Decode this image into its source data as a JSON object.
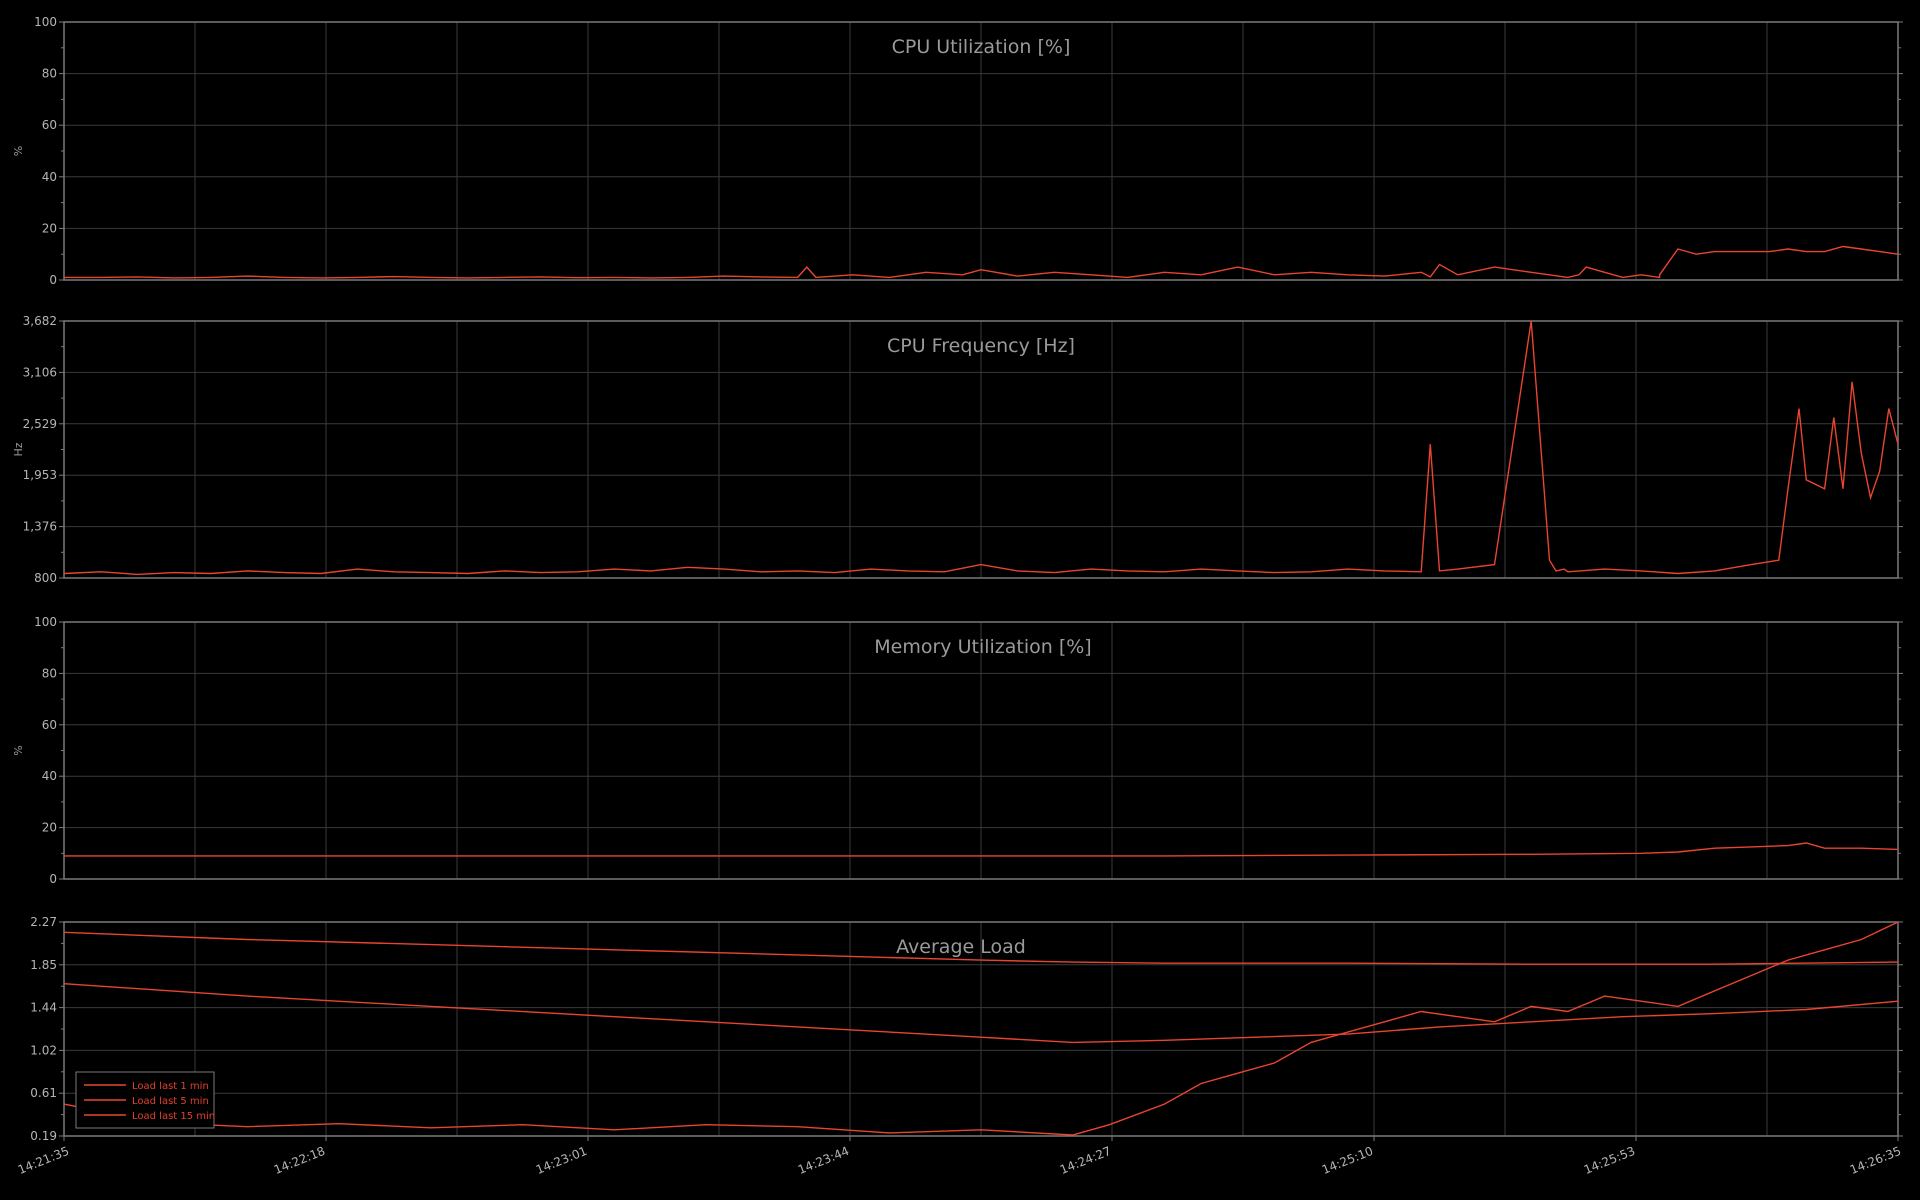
{
  "series_color": "#e8452f",
  "x_tick_labels": [
    "14:21:35",
    "14:22:18",
    "14:23:01",
    "14:23:44",
    "14:24:27",
    "14:25:10",
    "14:25:53",
    "14:26:35"
  ],
  "chart_data": [
    {
      "type": "line",
      "title": "CPU Utilization [%]",
      "ylabel": "%",
      "ylim": [
        0,
        100
      ],
      "y_ticks": [
        "0",
        "20",
        "40",
        "60",
        "80",
        "100"
      ],
      "grid": true,
      "series": [
        {
          "values_x_fraction": [
            0,
            0.02,
            0.04,
            0.06,
            0.08,
            0.1,
            0.12,
            0.14,
            0.16,
            0.18,
            0.2,
            0.22,
            0.24,
            0.26,
            0.28,
            0.3,
            0.32,
            0.34,
            0.36,
            0.38,
            0.4,
            0.405,
            0.41,
            0.43,
            0.45,
            0.47,
            0.49,
            0.5,
            0.52,
            0.54,
            0.56,
            0.58,
            0.6,
            0.62,
            0.64,
            0.66,
            0.68,
            0.7,
            0.72,
            0.74,
            0.745,
            0.75,
            0.76,
            0.78,
            0.8,
            0.82,
            0.826,
            0.83,
            0.84,
            0.85,
            0.86,
            0.87,
            0.87,
            0.88,
            0.89,
            0.9,
            0.905,
            0.91,
            0.93,
            0.94,
            0.95,
            0.96,
            0.97,
            0.98,
            0.99,
            1
          ],
          "values": [
            1,
            1,
            1.2,
            0.8,
            1,
            1.5,
            1,
            0.8,
            1,
            1.3,
            1,
            0.8,
            1,
            1.2,
            0.9,
            1,
            0.8,
            1,
            1.5,
            1.2,
            1,
            5,
            1,
            2,
            1,
            3,
            2,
            4,
            1.5,
            3,
            2,
            1,
            3,
            2,
            5,
            2,
            3,
            2,
            1.5,
            3,
            1.2,
            6,
            2,
            5,
            3,
            1,
            2,
            5,
            3,
            1,
            2,
            1,
            2,
            12,
            10,
            11,
            11,
            11,
            11,
            12,
            11,
            11,
            13,
            12,
            11,
            10
          ]
        }
      ]
    },
    {
      "type": "line",
      "title": "CPU Frequency [Hz]",
      "ylabel": "Hz",
      "ylim": [
        800,
        3682
      ],
      "y_ticks": [
        "800",
        "1,376",
        "1,953",
        "2,529",
        "3,106",
        "3,682"
      ],
      "grid": true,
      "series": [
        {
          "values_x_fraction": [
            0,
            0.02,
            0.04,
            0.06,
            0.08,
            0.1,
            0.12,
            0.14,
            0.16,
            0.18,
            0.2,
            0.22,
            0.24,
            0.26,
            0.28,
            0.3,
            0.32,
            0.34,
            0.36,
            0.38,
            0.4,
            0.42,
            0.44,
            0.46,
            0.48,
            0.5,
            0.52,
            0.54,
            0.56,
            0.58,
            0.6,
            0.62,
            0.64,
            0.66,
            0.68,
            0.7,
            0.72,
            0.74,
            0.745,
            0.75,
            0.76,
            0.78,
            0.8,
            0.81,
            0.8135,
            0.818,
            0.82,
            0.84,
            0.86,
            0.88,
            0.9,
            0.92,
            0.935,
            0.94,
            0.946,
            0.95,
            0.96,
            0.965,
            0.97,
            0.975,
            0.98,
            0.985,
            0.99,
            0.995,
            1
          ],
          "values": [
            850,
            870,
            840,
            860,
            850,
            880,
            860,
            850,
            900,
            870,
            860,
            850,
            880,
            860,
            870,
            900,
            880,
            920,
            900,
            870,
            880,
            860,
            900,
            880,
            870,
            950,
            880,
            860,
            900,
            880,
            870,
            900,
            880,
            860,
            870,
            900,
            880,
            870,
            2300,
            880,
            900,
            950,
            3682,
            1000,
            880,
            900,
            870,
            900,
            880,
            850,
            880,
            950,
            1000,
            1800,
            2700,
            1900,
            1800,
            2600,
            1800,
            3000,
            2200,
            1700,
            2000,
            2700,
            2300
          ]
        }
      ]
    },
    {
      "type": "line",
      "title": "Memory Utilization [%]",
      "ylabel": "%",
      "ylim": [
        0,
        100
      ],
      "y_ticks": [
        "0",
        "20",
        "40",
        "60",
        "80",
        "100"
      ],
      "grid": true,
      "series": [
        {
          "values_x_fraction": [
            0,
            0.2,
            0.4,
            0.6,
            0.7,
            0.8,
            0.86,
            0.88,
            0.9,
            0.92,
            0.94,
            0.95,
            0.96,
            0.98,
            1
          ],
          "values": [
            9,
            9,
            9,
            9,
            9.3,
            9.6,
            10,
            10.5,
            12,
            12.5,
            13,
            14,
            12,
            12,
            11.5
          ]
        }
      ]
    },
    {
      "type": "line",
      "title": "Average Load",
      "ylabel": "",
      "ylim": [
        0.19,
        2.27
      ],
      "y_ticks": [
        "0.19",
        "0.61",
        "1.02",
        "1.44",
        "1.85",
        "2.27"
      ],
      "grid": true,
      "legend": "bottom-left",
      "series": [
        {
          "name": "Load last 1 min",
          "values_x_fraction": [
            0,
            0.05,
            0.1,
            0.15,
            0.2,
            0.25,
            0.3,
            0.35,
            0.4,
            0.45,
            0.5,
            0.55,
            0.57,
            0.6,
            0.62,
            0.64,
            0.66,
            0.68,
            0.7,
            0.72,
            0.74,
            0.76,
            0.78,
            0.8,
            0.82,
            0.84,
            0.86,
            0.88,
            0.9,
            0.92,
            0.94,
            0.96,
            0.98,
            1
          ],
          "values": [
            0.5,
            0.32,
            0.28,
            0.31,
            0.27,
            0.3,
            0.25,
            0.3,
            0.28,
            0.22,
            0.25,
            0.2,
            0.3,
            0.5,
            0.7,
            0.8,
            0.9,
            1.1,
            1.2,
            1.3,
            1.4,
            1.35,
            1.3,
            1.45,
            1.4,
            1.55,
            1.5,
            1.45,
            1.6,
            1.75,
            1.9,
            2.0,
            2.1,
            2.27
          ]
        },
        {
          "name": "Load last 5 min",
          "values_x_fraction": [
            0,
            0.1,
            0.2,
            0.3,
            0.4,
            0.5,
            0.55,
            0.6,
            0.65,
            0.7,
            0.75,
            0.8,
            0.85,
            0.9,
            0.95,
            1
          ],
          "values": [
            1.67,
            1.55,
            1.45,
            1.35,
            1.25,
            1.15,
            1.1,
            1.12,
            1.15,
            1.18,
            1.25,
            1.3,
            1.35,
            1.38,
            1.42,
            1.5
          ]
        },
        {
          "name": "Load last 15 min",
          "values_x_fraction": [
            0,
            0.1,
            0.2,
            0.3,
            0.4,
            0.5,
            0.55,
            0.6,
            0.7,
            0.8,
            0.9,
            1
          ],
          "values": [
            2.17,
            2.1,
            2.05,
            2.0,
            1.95,
            1.9,
            1.88,
            1.87,
            1.87,
            1.86,
            1.86,
            1.88
          ]
        }
      ]
    }
  ]
}
